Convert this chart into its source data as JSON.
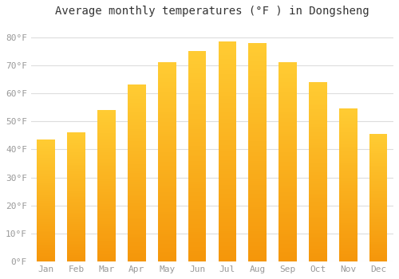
{
  "title": "Average monthly temperatures (°F ) in Dongsheng",
  "months": [
    "Jan",
    "Feb",
    "Mar",
    "Apr",
    "May",
    "Jun",
    "Jul",
    "Aug",
    "Sep",
    "Oct",
    "Nov",
    "Dec"
  ],
  "values": [
    43.5,
    46.0,
    54.0,
    63.0,
    71.0,
    75.0,
    78.5,
    78.0,
    71.0,
    64.0,
    54.5,
    45.5
  ],
  "bar_color_top": "#FFCC33",
  "bar_color_bottom": "#F5960A",
  "background_color": "#FFFFFF",
  "grid_color": "#DDDDDD",
  "yticks": [
    0,
    10,
    20,
    30,
    40,
    50,
    60,
    70,
    80
  ],
  "ylim": [
    0,
    85
  ],
  "title_fontsize": 10,
  "tick_fontsize": 8,
  "tick_color": "#999999"
}
